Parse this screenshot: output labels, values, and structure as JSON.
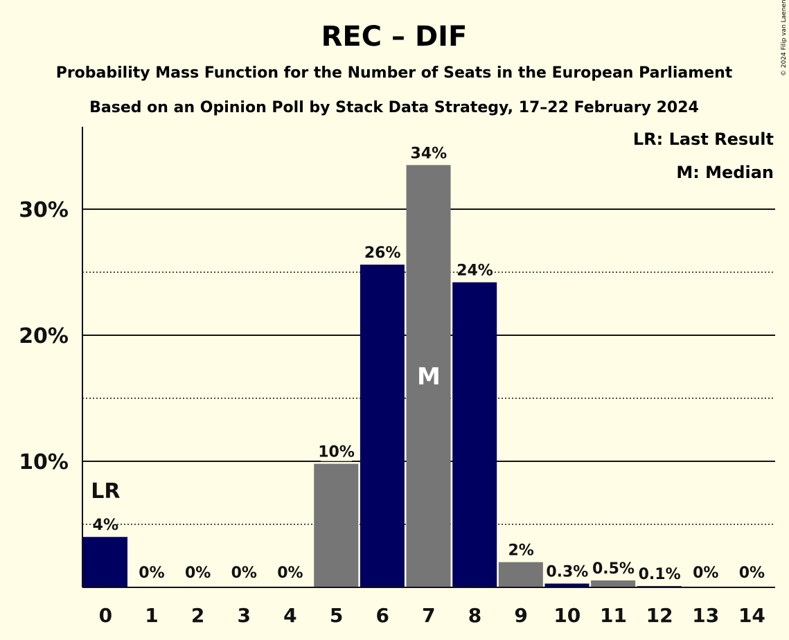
{
  "chart_data": {
    "type": "bar",
    "title": "REC – DIF",
    "subtitle": "Probability Mass Function for the Number of Seats in the European Parliament",
    "subtitle2": "Based on an Opinion Poll by Stack Data Strategy, 17–22 February 2024",
    "copyright": "© 2024 Filip van Laenen",
    "legend": [
      "LR: Last Result",
      "M: Median"
    ],
    "xlabel": "",
    "ylabel": "",
    "ylim": [
      0,
      36.5
    ],
    "yticks": [
      {
        "value": 10,
        "label": "10%"
      },
      {
        "value": 20,
        "label": "20%"
      },
      {
        "value": 30,
        "label": "30%"
      }
    ],
    "dotted_gridlines": [
      5,
      15,
      25
    ],
    "categories": [
      "0",
      "1",
      "2",
      "3",
      "4",
      "5",
      "6",
      "7",
      "8",
      "9",
      "10",
      "11",
      "12",
      "13",
      "14"
    ],
    "values": [
      4,
      0,
      0,
      0,
      0,
      9.8,
      25.6,
      33.5,
      24.2,
      2,
      0.3,
      0.55,
      0.1,
      0,
      0
    ],
    "labels": [
      "4%",
      "0%",
      "0%",
      "0%",
      "0%",
      "10%",
      "26%",
      "34%",
      "24%",
      "2%",
      "0.3%",
      "0.5%",
      "0.1%",
      "0%",
      "0%"
    ],
    "colors": [
      "#000060",
      "#767676",
      "#000060",
      "#767676",
      "#000060",
      "#767676",
      "#000060",
      "#767676",
      "#000060",
      "#767676",
      "#000060",
      "#767676",
      "#000060",
      "#767676",
      "#000060"
    ],
    "last_result_index": 0,
    "last_result_marker": "LR",
    "median_index": 7,
    "median_marker": "M",
    "grid": true,
    "legend_position": "top-right"
  }
}
